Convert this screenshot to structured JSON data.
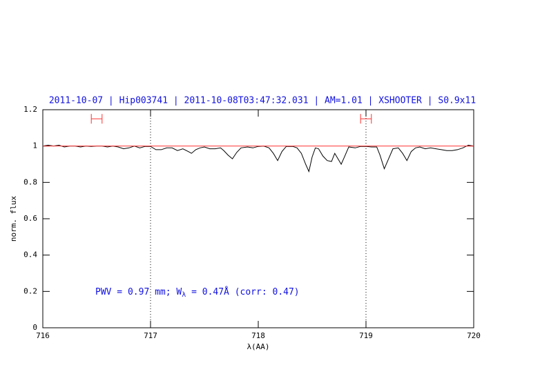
{
  "chart_data": {
    "type": "line",
    "title": "2011-10-07 | Hip003741 | 2011-10-08T03:47:32.031 | AM=1.01 | XSHOOTER | S0.9x11",
    "x_label": "λ(AA)",
    "y_label": "norm. flux",
    "annotation": [
      "PWV = 0.97 mm; W",
      "λ",
      " = 0.47Å (corr: 0.47)"
    ],
    "xlim": [
      716,
      720
    ],
    "xticks": [
      716,
      717,
      718,
      719,
      720
    ],
    "ylim": [
      0,
      1.2
    ],
    "yticks": [
      0,
      0.2,
      0.4,
      0.6,
      0.8,
      1,
      1.2
    ],
    "vlines": [
      717,
      719
    ],
    "regions": {
      "color": "#ff3030",
      "y": [
        1.15,
        1.15
      ],
      "x": [
        [
          716.45,
          716.55
        ],
        [
          718.95,
          719.05
        ]
      ]
    },
    "series": [
      {
        "color": "#000000",
        "x": [
          716.0,
          716.05,
          716.1,
          716.15,
          716.2,
          716.25,
          716.3,
          716.35,
          716.4,
          716.45,
          716.5,
          716.55,
          716.6,
          716.65,
          716.7,
          716.75,
          716.8,
          716.85,
          716.9,
          716.95,
          717.0,
          717.05,
          717.1,
          717.15,
          717.2,
          717.25,
          717.3,
          717.35,
          717.38,
          717.42,
          717.46,
          717.5,
          717.55,
          717.6,
          717.65,
          717.68,
          717.72,
          717.76,
          717.8,
          717.84,
          717.9,
          717.95,
          718.0,
          718.05,
          718.1,
          718.14,
          718.18,
          718.22,
          718.26,
          718.32,
          718.36,
          718.4,
          718.44,
          718.47,
          718.5,
          718.53,
          718.56,
          718.6,
          718.64,
          718.68,
          718.71,
          718.74,
          718.77,
          718.8,
          718.84,
          718.9,
          718.95,
          719.0,
          719.05,
          719.1,
          719.13,
          719.17,
          719.21,
          719.25,
          719.3,
          719.34,
          719.38,
          719.42,
          719.46,
          719.5,
          719.55,
          719.6,
          719.65,
          719.7,
          719.75,
          719.8,
          719.85,
          719.9,
          719.95,
          720.0
        ],
        "values": [
          1.0,
          1.005,
          1.0,
          1.005,
          0.995,
          1.0,
          1.0,
          0.995,
          1.0,
          0.998,
          1.0,
          1.0,
          0.995,
          1.0,
          0.995,
          0.985,
          0.99,
          1.0,
          0.99,
          0.998,
          0.998,
          0.98,
          0.98,
          0.99,
          0.99,
          0.975,
          0.985,
          0.97,
          0.96,
          0.98,
          0.99,
          0.995,
          0.985,
          0.985,
          0.99,
          0.975,
          0.95,
          0.93,
          0.965,
          0.99,
          0.995,
          0.99,
          0.998,
          1.0,
          0.99,
          0.96,
          0.92,
          0.97,
          0.998,
          0.998,
          0.99,
          0.96,
          0.9,
          0.86,
          0.94,
          0.99,
          0.985,
          0.945,
          0.92,
          0.915,
          0.96,
          0.93,
          0.9,
          0.94,
          0.995,
          0.99,
          0.998,
          0.998,
          0.995,
          0.995,
          0.95,
          0.875,
          0.93,
          0.985,
          0.99,
          0.96,
          0.92,
          0.97,
          0.99,
          0.995,
          0.985,
          0.99,
          0.985,
          0.98,
          0.975,
          0.975,
          0.98,
          0.99,
          1.005,
          1.0
        ]
      },
      {
        "color": "#ff3030",
        "x": [
          716,
          720
        ],
        "values": [
          1,
          1
        ]
      }
    ]
  }
}
